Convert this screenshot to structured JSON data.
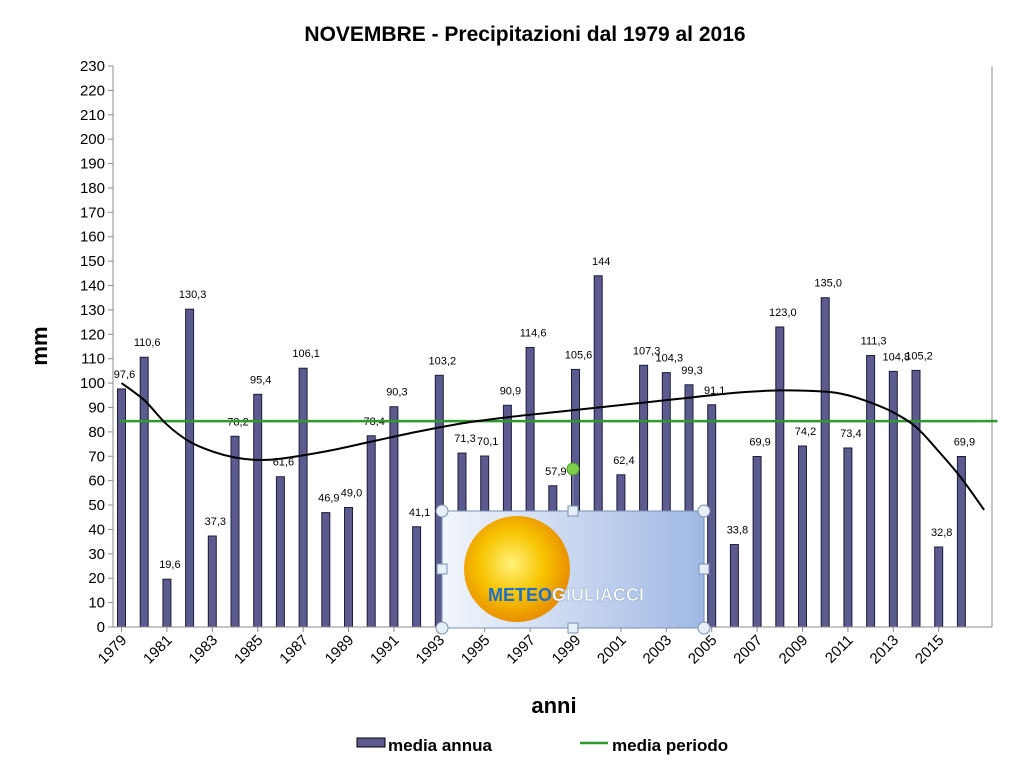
{
  "chart_data": {
    "type": "bar",
    "title": "NOVEMBRE  - Precipitazioni dal 1979 al 2016",
    "xlabel": "anni",
    "ylabel": "mm",
    "ylim": [
      0,
      230
    ],
    "ytick_step": 10,
    "grid": false,
    "legend_position": "bottom",
    "categories": [
      "1979",
      "1980",
      "1981",
      "1982",
      "1983",
      "1984",
      "1985",
      "1986",
      "1987",
      "1988",
      "1989",
      "1990",
      "1991",
      "1992",
      "1993",
      "1994",
      "1995",
      "1996",
      "1997",
      "1998",
      "1999",
      "2000",
      "2001",
      "2002",
      "2003",
      "2004",
      "2005",
      "2006",
      "2007",
      "2008",
      "2009",
      "2010",
      "2011",
      "2012",
      "2013",
      "2014",
      "2015",
      "2016"
    ],
    "x_tick_labels": [
      "1979",
      "1981",
      "1983",
      "1985",
      "1987",
      "1989",
      "1991",
      "1993",
      "1995",
      "1997",
      "1999",
      "2001",
      "2003",
      "2005",
      "2007",
      "2009",
      "2011",
      "2013",
      "2015"
    ],
    "series": [
      {
        "name": "media annua",
        "kind": "bar",
        "color": "#5b5b8f",
        "values": [
          97.6,
          110.6,
          19.6,
          130.3,
          37.3,
          78.2,
          95.4,
          61.6,
          106.1,
          46.9,
          49.0,
          78.4,
          90.3,
          41.1,
          103.2,
          71.3,
          70.1,
          90.9,
          114.6,
          57.9,
          105.6,
          144,
          62.4,
          107.3,
          104.3,
          99.3,
          91.1,
          33.8,
          69.9,
          123.0,
          74.2,
          135.0,
          73.4,
          111.3,
          104.8,
          105.2,
          32.8,
          69.9
        ],
        "labels": [
          "97,6",
          "110,6",
          "19,6",
          "130,3",
          "37,3",
          "78,2",
          "95,4",
          "61,6",
          "106,1",
          "46,9",
          "49,0",
          "78,4",
          "90,3",
          "41,1",
          "103,2",
          "71,3",
          "70,1",
          "90,9",
          "114,6",
          "57,9",
          "105,6",
          "144",
          "62,4",
          "107,3",
          "104,3",
          "99,3",
          "91,1",
          "33,8",
          "69,9",
          "123,0",
          "74,2",
          "135,0",
          "73,4",
          "111,3",
          "104,8",
          "105,2",
          "32,8",
          "69,9"
        ]
      },
      {
        "name": "media periodo",
        "kind": "line",
        "color": "#2e9a2e",
        "value": 84.4
      },
      {
        "name": "",
        "kind": "trend",
        "color": "#000000",
        "x": [
          1979,
          1980,
          1981,
          1982,
          1983,
          1984,
          1985,
          1986,
          1988,
          1990,
          1992,
          1994,
          1996,
          1998,
          2000,
          2002,
          2004,
          2006,
          2008,
          2010,
          2011,
          2012,
          2013,
          2014,
          2015,
          2016,
          2017
        ],
        "y": [
          100,
          93,
          83,
          76,
          72,
          69.5,
          68.5,
          69,
          72,
          76,
          80,
          83.5,
          86,
          88,
          90,
          92,
          94,
          96,
          97,
          96.5,
          95,
          92,
          88,
          82,
          72,
          61,
          48
        ]
      }
    ]
  },
  "logo": {
    "word1": "METEO",
    "word2": "GIULIACCI"
  }
}
